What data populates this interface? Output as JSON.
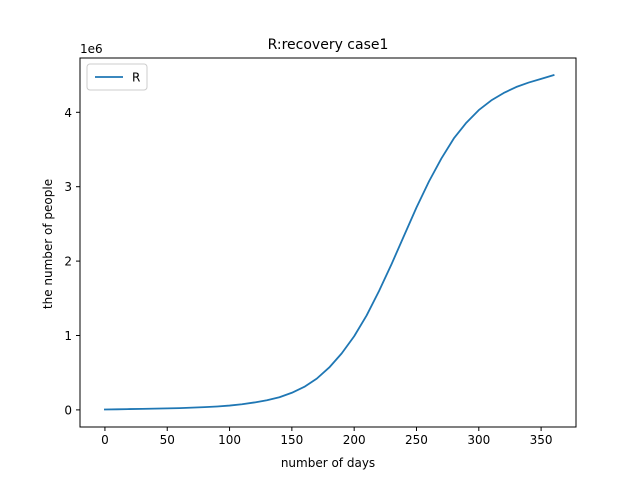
{
  "chart_data": {
    "type": "line",
    "title": "R:recovery  case1",
    "xlabel": "number of days",
    "ylabel": "the number of people",
    "y_offset_label": "1e6",
    "xlim": [
      -20,
      378
    ],
    "ylim": [
      -0.23,
      4.73
    ],
    "x_ticks": [
      0,
      50,
      100,
      150,
      200,
      250,
      300,
      350
    ],
    "y_ticks": [
      0,
      1,
      2,
      3,
      4
    ],
    "y_tick_labels": [
      "0",
      "1",
      "2",
      "3",
      "4"
    ],
    "grid": false,
    "legend_position": "upper-left",
    "series": [
      {
        "name": "R",
        "color": "#1f77b4",
        "x": [
          0,
          10,
          20,
          30,
          40,
          50,
          60,
          70,
          80,
          90,
          100,
          110,
          120,
          130,
          140,
          150,
          160,
          170,
          180,
          190,
          200,
          210,
          220,
          230,
          240,
          250,
          260,
          270,
          280,
          290,
          300,
          310,
          320,
          330,
          340,
          350,
          360
        ],
        "y": [
          0.005,
          0.008,
          0.011,
          0.014,
          0.017,
          0.02,
          0.024,
          0.03,
          0.037,
          0.046,
          0.058,
          0.076,
          0.1,
          0.13,
          0.17,
          0.23,
          0.31,
          0.42,
          0.57,
          0.76,
          0.99,
          1.27,
          1.6,
          1.96,
          2.34,
          2.72,
          3.07,
          3.38,
          3.65,
          3.86,
          4.03,
          4.16,
          4.26,
          4.34,
          4.4,
          4.45,
          4.5
        ]
      }
    ]
  }
}
